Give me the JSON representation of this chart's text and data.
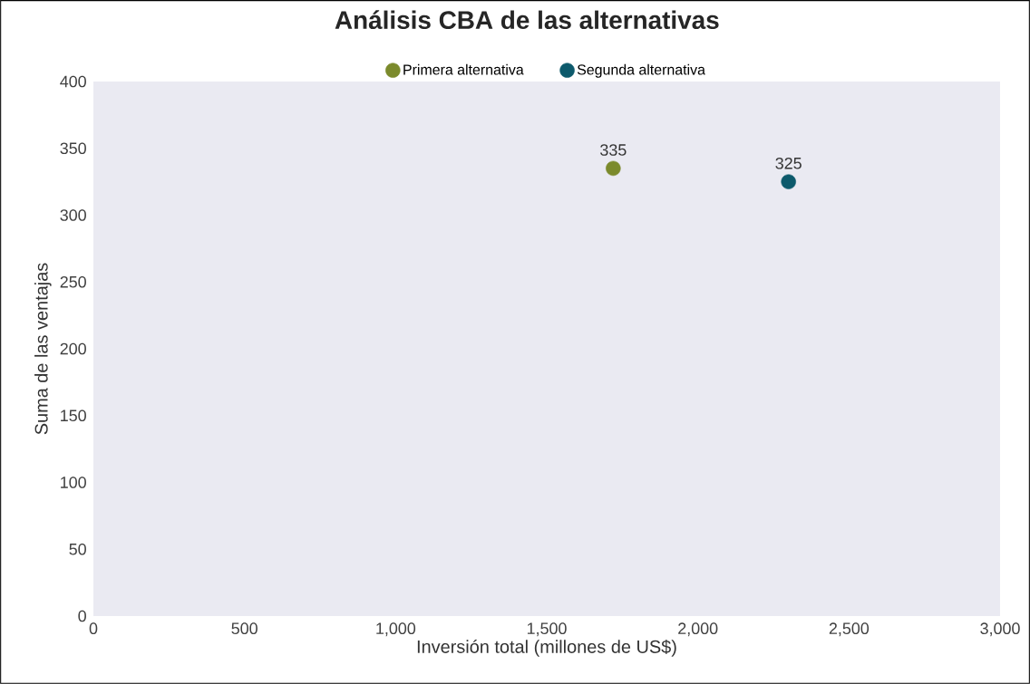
{
  "chart_data": {
    "type": "scatter",
    "title": "Análisis CBA de las alternativas",
    "xlabel": "Inversión total (millones de US$)",
    "ylabel": "Suma de las ventajas",
    "series": [
      {
        "name": "Primera alternativa",
        "color": "#7b8a2c",
        "x": [
          1720
        ],
        "values": [
          335
        ]
      },
      {
        "name": "Segunda alternativa",
        "color": "#0d5a6c",
        "x": [
          2300
        ],
        "values": [
          325
        ]
      }
    ],
    "xlim": [
      0,
      3000
    ],
    "ylim": [
      0,
      400
    ],
    "xticks": [
      0,
      500,
      {
        "value": 1000,
        "label": "1,000"
      },
      {
        "value": 1500,
        "label": "1,500"
      },
      {
        "value": 2000,
        "label": "2,000"
      },
      {
        "value": 2500,
        "label": "2,500"
      },
      {
        "value": 3000,
        "label": "3,000"
      }
    ],
    "yticks": [
      0,
      50,
      100,
      150,
      200,
      250,
      300,
      350,
      400
    ],
    "legend": "top",
    "marker": "circle",
    "data_labels": true
  }
}
